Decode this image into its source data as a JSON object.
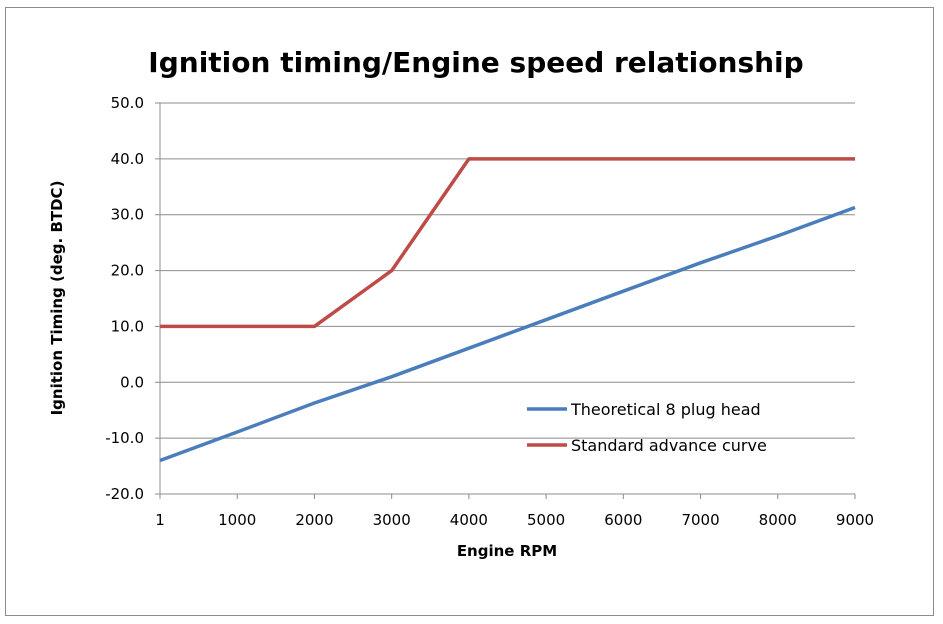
{
  "chart_data": {
    "type": "line",
    "title": "Ignition timing/Engine speed relationship",
    "xlabel": "Engine RPM",
    "ylabel": "Ignition Timing (deg. BTDC)",
    "x_categories": [
      "1",
      "1000",
      "2000",
      "3000",
      "4000",
      "5000",
      "6000",
      "7000",
      "8000",
      "9000"
    ],
    "ylim": [
      -20,
      50
    ],
    "yticks": [
      "-20.0",
      "-10.0",
      "0.0",
      "10.0",
      "20.0",
      "30.0",
      "40.0",
      "50.0"
    ],
    "grid": true,
    "legend_position": "lower-right",
    "series": [
      {
        "name": "Theoretical 8 plug head",
        "color": "#4a7ebb",
        "values": [
          -14.0,
          -8.9,
          -3.7,
          1.0,
          6.1,
          11.2,
          16.3,
          21.4,
          26.2,
          31.3
        ]
      },
      {
        "name": "Standard advance curve",
        "color": "#be4b48",
        "values": [
          10.0,
          10.0,
          10.0,
          20.0,
          40.0,
          40.0,
          40.0,
          40.0,
          40.0,
          40.0
        ]
      }
    ]
  }
}
